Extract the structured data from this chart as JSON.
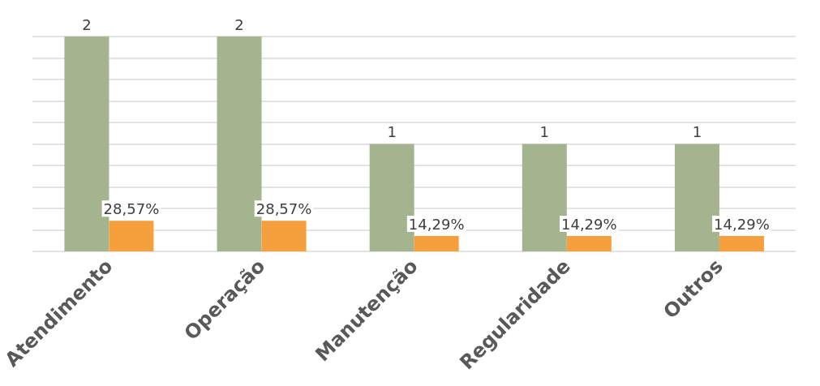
{
  "chart_data": {
    "type": "bar",
    "categories": [
      "Atendimento",
      "Operação",
      "Manutenção",
      "Regularidade",
      "Outros"
    ],
    "series": [
      {
        "color": "#a3b48f",
        "values": [
          2,
          2,
          1,
          1,
          1
        ],
        "data_labels": true
      },
      {
        "color": "#f5a03c",
        "values": [
          0.2857,
          0.2857,
          0.1429,
          0.1429,
          0.1429
        ],
        "value_labels": [
          "28,57%",
          "28,57%",
          "14,29%",
          "14,29%",
          "14,29%"
        ]
      }
    ],
    "ylim": [
      0,
      2
    ],
    "yticks": [
      {
        "value": 0,
        "label": null
      },
      {
        "value": 0.2,
        "label": null
      },
      {
        "value": 0.4,
        "label": null
      },
      {
        "value": 0.6,
        "label": null
      },
      {
        "value": 0.8,
        "label": null
      },
      {
        "value": 1,
        "label": null
      },
      {
        "value": 1.2,
        "label": null
      },
      {
        "value": 1.4,
        "label": null
      },
      {
        "value": 1.6,
        "label": null
      },
      {
        "value": 1.8,
        "label": null
      },
      {
        "value": 2,
        "label": null
      }
    ],
    "grid": true,
    "tick_labels": "x"
  }
}
